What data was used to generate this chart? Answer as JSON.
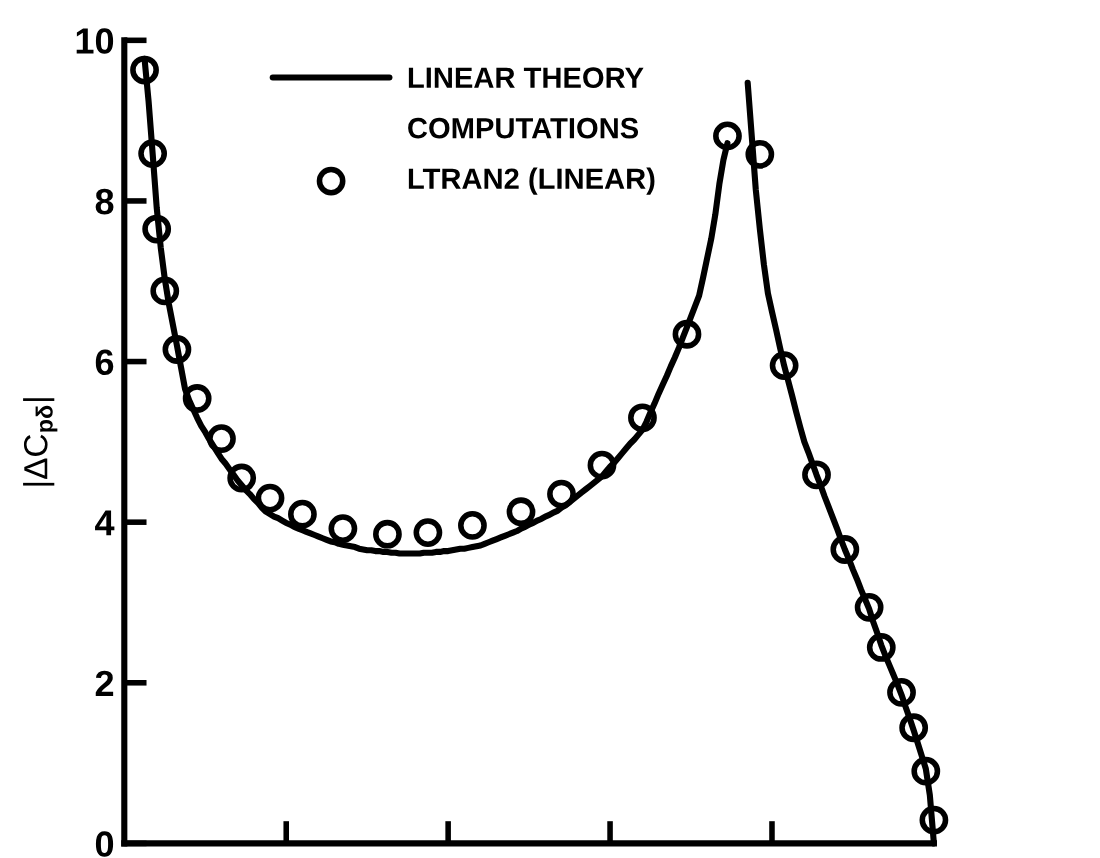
{
  "chart_data": {
    "type": "line",
    "ylabel": "|ΔC$_{pδ}$|",
    "annotations": [
      "COMPUTATIONS"
    ],
    "categories": [
      null,
      null,
      null,
      null,
      null,
      null,
      null,
      null,
      null,
      null,
      null,
      null,
      null,
      null,
      null,
      null,
      null,
      null,
      null,
      null,
      null,
      null,
      null,
      null,
      null,
      null,
      null,
      null,
      null,
      null,
      null,
      null,
      null,
      null,
      null,
      null,
      null,
      null,
      null,
      null,
      null,
      null,
      null,
      null,
      null,
      null,
      null,
      null,
      null,
      null,
      null,
      null,
      null,
      null,
      null,
      null,
      null,
      null,
      null,
      null,
      null,
      null,
      null,
      null,
      null,
      null,
      null,
      null,
      null,
      null,
      null,
      null,
      null,
      null,
      null,
      null,
      null,
      null,
      null,
      null,
      null,
      null,
      null,
      null,
      null,
      null,
      null,
      null,
      null,
      null,
      null,
      null,
      null,
      null,
      null,
      null,
      null,
      null,
      null,
      null,
      null,
      null,
      null,
      null,
      null,
      null,
      null,
      null,
      null,
      null,
      null,
      null,
      null,
      null,
      null,
      null,
      null,
      null,
      null,
      null,
      null,
      null,
      null,
      null,
      null,
      null,
      null,
      null,
      null,
      null,
      null,
      null,
      null,
      null,
      null,
      null,
      null,
      null,
      null,
      null,
      null,
      null,
      null,
      null,
      null,
      null,
      null,
      null,
      null,
      null,
      null,
      null,
      null,
      null,
      null,
      null,
      null,
      null,
      null,
      null,
      null,
      null,
      null,
      null,
      null,
      null,
      null,
      null,
      null,
      null,
      null,
      null,
      null,
      null,
      null,
      null,
      null,
      null,
      null,
      null,
      null,
      null,
      null,
      null,
      null,
      null,
      null,
      null,
      null,
      null,
      null,
      null,
      null,
      null,
      null,
      null,
      null,
      null,
      null,
      null,
      null
    ],
    "series": [
      {
        "name": "LINEAR THEORY",
        "color": "#000000",
        "marker": "none",
        "values": [
          null,
          null,
          null,
          null,
          null,
          9.77,
          9.24,
          8.59,
          7.92,
          7.42,
          7.03,
          6.72,
          6.46,
          6.2,
          5.93,
          5.66,
          5.52,
          5.41,
          5.3,
          5.2,
          5.12,
          5.03,
          4.95,
          4.87,
          4.79,
          4.73,
          4.66,
          4.59,
          4.52,
          4.46,
          4.4,
          4.35,
          4.29,
          4.24,
          4.18,
          4.13,
          4.1,
          4.07,
          4.05,
          4.02,
          3.99,
          3.97,
          3.94,
          3.92,
          3.9,
          3.88,
          3.86,
          3.84,
          3.82,
          3.8,
          3.78,
          3.76,
          3.75,
          3.73,
          3.72,
          3.71,
          3.7,
          3.69,
          3.67,
          3.66,
          3.65,
          3.65,
          3.64,
          3.64,
          3.63,
          3.63,
          3.62,
          3.62,
          3.61,
          3.61,
          3.61,
          3.61,
          3.61,
          3.61,
          3.62,
          3.62,
          3.62,
          3.63,
          3.63,
          3.64,
          3.64,
          3.65,
          3.66,
          3.67,
          3.67,
          3.68,
          3.69,
          3.7,
          3.71,
          3.73,
          3.75,
          3.77,
          3.79,
          3.81,
          3.83,
          3.85,
          3.87,
          3.89,
          3.92,
          3.94,
          3.97,
          3.99,
          4.02,
          4.04,
          4.07,
          4.09,
          4.12,
          4.14,
          4.18,
          4.21,
          4.25,
          4.29,
          4.33,
          4.37,
          4.41,
          4.45,
          4.49,
          4.53,
          4.57,
          4.63,
          4.69,
          4.74,
          4.8,
          4.86,
          4.92,
          4.98,
          5.03,
          5.09,
          5.15,
          5.25,
          5.37,
          5.48,
          5.6,
          5.71,
          5.82,
          5.94,
          6.05,
          6.17,
          6.3,
          6.43,
          6.56,
          6.69,
          6.82,
          7.05,
          7.29,
          7.53,
          7.83,
          8.21,
          8.51,
          8.72,
          null,
          null,
          null,
          null,
          null,
          null,
          null,
          null,
          null,
          null,
          null,
          null,
          null,
          null,
          null,
          null,
          null,
          null,
          null,
          null,
          null,
          null,
          null,
          null,
          null,
          null,
          null,
          null,
          null,
          null,
          null,
          null,
          null,
          null,
          null,
          null,
          null,
          null,
          null,
          null,
          null,
          null,
          null,
          null,
          null,
          null,
          null,
          null,
          null,
          null,
          null
        ]
      },
      {
        "color": "#000000",
        "marker": "none",
        "values": [
          null,
          null,
          null,
          null,
          null,
          null,
          null,
          null,
          null,
          null,
          null,
          null,
          null,
          null,
          null,
          null,
          null,
          null,
          null,
          null,
          null,
          null,
          null,
          null,
          null,
          null,
          null,
          null,
          null,
          null,
          null,
          null,
          null,
          null,
          null,
          null,
          null,
          null,
          null,
          null,
          null,
          null,
          null,
          null,
          null,
          null,
          null,
          null,
          null,
          null,
          null,
          null,
          null,
          null,
          null,
          null,
          null,
          null,
          null,
          null,
          null,
          null,
          null,
          null,
          null,
          null,
          null,
          null,
          null,
          null,
          null,
          null,
          null,
          null,
          null,
          null,
          null,
          null,
          null,
          null,
          null,
          null,
          null,
          null,
          null,
          null,
          null,
          null,
          null,
          null,
          null,
          null,
          null,
          null,
          null,
          null,
          null,
          null,
          null,
          null,
          null,
          null,
          null,
          null,
          null,
          null,
          null,
          null,
          null,
          null,
          null,
          null,
          null,
          null,
          null,
          null,
          null,
          null,
          null,
          null,
          null,
          null,
          null,
          null,
          null,
          null,
          null,
          null,
          null,
          null,
          null,
          null,
          null,
          null,
          null,
          null,
          null,
          null,
          null,
          null,
          null,
          null,
          null,
          null,
          null,
          null,
          null,
          null,
          null,
          null,
          null,
          null,
          null,
          null,
          9.47,
          8.81,
          8.14,
          7.65,
          7.21,
          6.85,
          6.62,
          6.4,
          6.17,
          5.95,
          5.76,
          5.57,
          5.37,
          5.18,
          5.0,
          4.87,
          4.73,
          4.59,
          4.46,
          4.32,
          4.19,
          4.06,
          3.93,
          3.79,
          3.66,
          3.54,
          3.41,
          3.29,
          3.16,
          3.04,
          2.92,
          2.76,
          2.62,
          2.47,
          2.34,
          2.22,
          2.1,
          1.98,
          1.85,
          1.7,
          1.56,
          1.41,
          1.25,
          1.09,
          0.93,
          0.6,
          0.0
        ]
      },
      {
        "name": "LTRAN2 (LINEAR)",
        "type": "scatter",
        "color": "#000000",
        "marker": "circle",
        "values": [
          null,
          null,
          null,
          null,
          null,
          9.63,
          null,
          8.59,
          7.65,
          null,
          6.88,
          null,
          null,
          6.15,
          null,
          null,
          null,
          null,
          5.54,
          null,
          null,
          null,
          null,
          null,
          5.04,
          null,
          null,
          null,
          null,
          4.55,
          null,
          null,
          null,
          null,
          null,
          null,
          4.3,
          null,
          null,
          null,
          null,
          null,
          null,
          null,
          4.1,
          null,
          null,
          null,
          null,
          null,
          null,
          null,
          null,
          null,
          3.92,
          null,
          null,
          null,
          null,
          null,
          null,
          null,
          null,
          null,
          null,
          3.85,
          null,
          null,
          null,
          null,
          null,
          null,
          null,
          null,
          null,
          3.87,
          null,
          null,
          null,
          null,
          null,
          null,
          null,
          null,
          null,
          null,
          3.96,
          null,
          null,
          null,
          null,
          null,
          null,
          null,
          null,
          null,
          null,
          null,
          4.13,
          null,
          null,
          null,
          null,
          null,
          null,
          null,
          null,
          null,
          4.35,
          null,
          null,
          null,
          null,
          null,
          null,
          null,
          null,
          null,
          4.71,
          null,
          null,
          null,
          null,
          null,
          null,
          null,
          null,
          null,
          5.3,
          null,
          null,
          null,
          null,
          null,
          null,
          null,
          null,
          null,
          null,
          6.34,
          null,
          null,
          null,
          null,
          null,
          null,
          null,
          null,
          null,
          8.81,
          null,
          null,
          null,
          null,
          null,
          null,
          null,
          8.58,
          null,
          null,
          null,
          null,
          null,
          5.95,
          null,
          null,
          null,
          null,
          null,
          null,
          null,
          4.59,
          null,
          null,
          null,
          null,
          null,
          null,
          3.66,
          null,
          null,
          null,
          null,
          null,
          2.94,
          null,
          null,
          2.44,
          null,
          null,
          null,
          null,
          1.88,
          null,
          null,
          1.44,
          null,
          null,
          0.9,
          null,
          0.29
        ]
      }
    ],
    "ylim": [
      0,
      10
    ],
    "yticks": [
      0,
      2,
      4,
      6,
      8,
      10
    ],
    "tick_labels": "y",
    "grid": false,
    "legend": "top",
    "line_style": "solid"
  }
}
